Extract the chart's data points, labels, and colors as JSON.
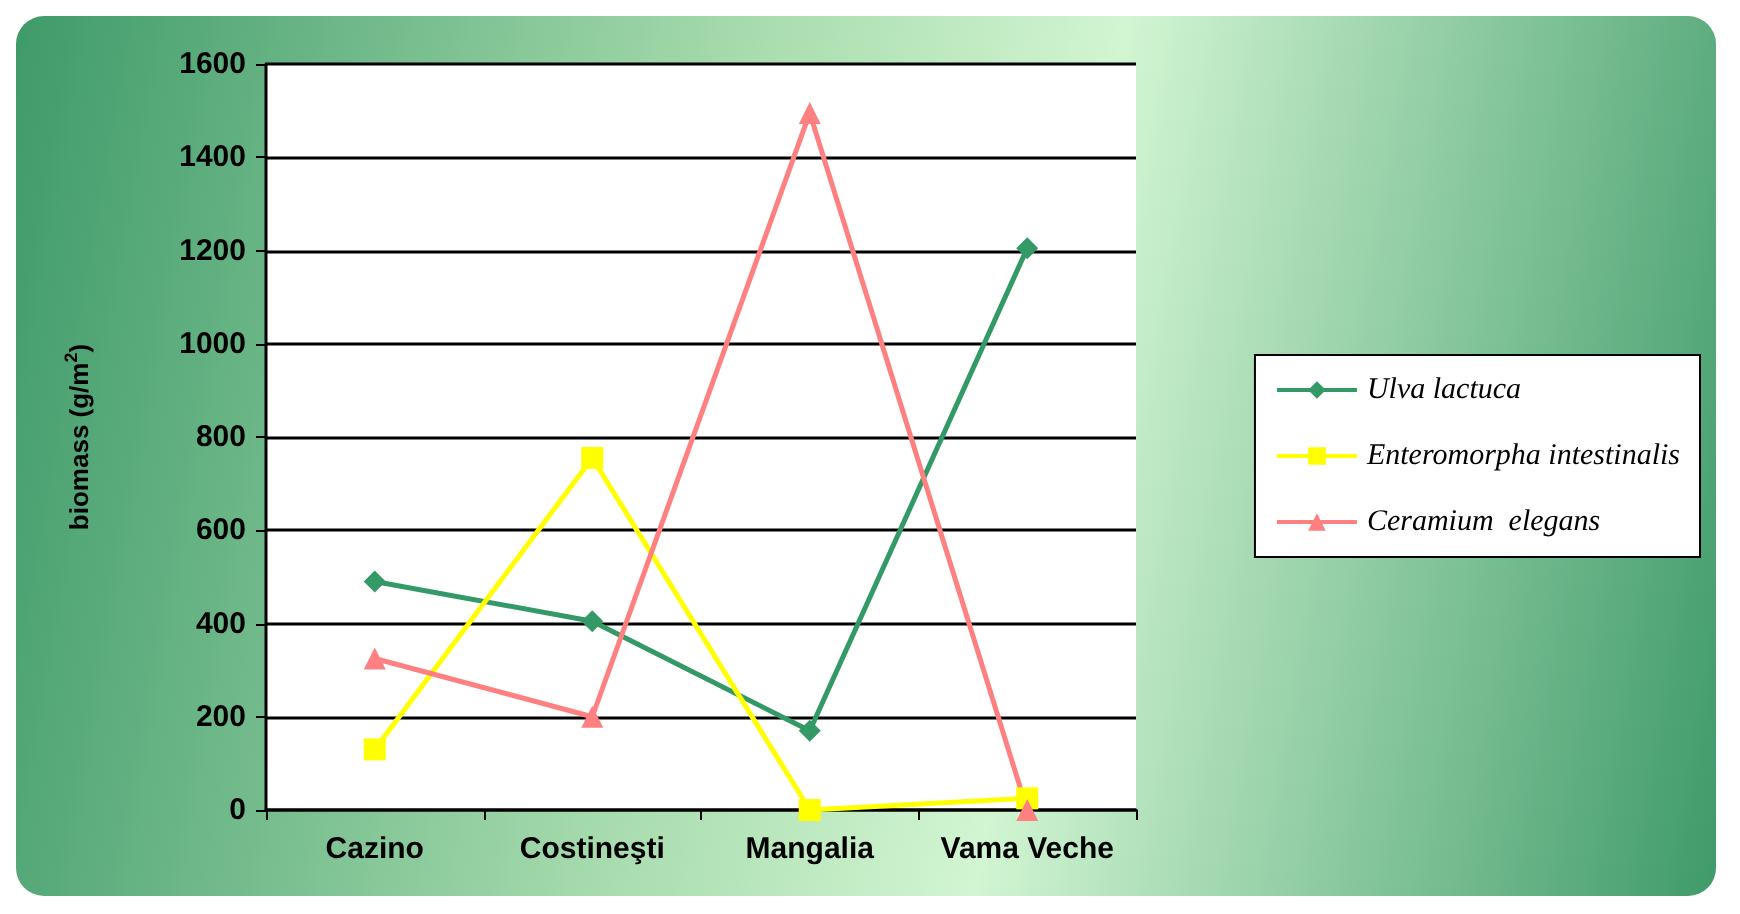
{
  "chart_data": {
    "type": "line",
    "ylabel": "biomass (g/m$^{2}$)",
    "categories": [
      "Cazino",
      "Costineşti",
      "Mangalia",
      "Vama Veche"
    ],
    "series": [
      {
        "name": "Ulva lactuca",
        "color": "#339966",
        "marker": "diamond",
        "values": [
          490,
          405,
          170,
          1205
        ]
      },
      {
        "name": "Enteromorpha intestinalis",
        "color": "#ffff00",
        "marker": "square",
        "values": [
          130,
          755,
          0,
          25
        ]
      },
      {
        "name": "Ceramium  elegans",
        "color": "#ff8080",
        "marker": "triangle",
        "values": [
          325,
          200,
          1495,
          0
        ]
      }
    ],
    "ylim": [
      0,
      1600
    ],
    "yticks": [
      0,
      200,
      400,
      600,
      800,
      1000,
      1200,
      1400,
      1600
    ],
    "grid": "y",
    "legend": "right",
    "line_style": "solid"
  }
}
